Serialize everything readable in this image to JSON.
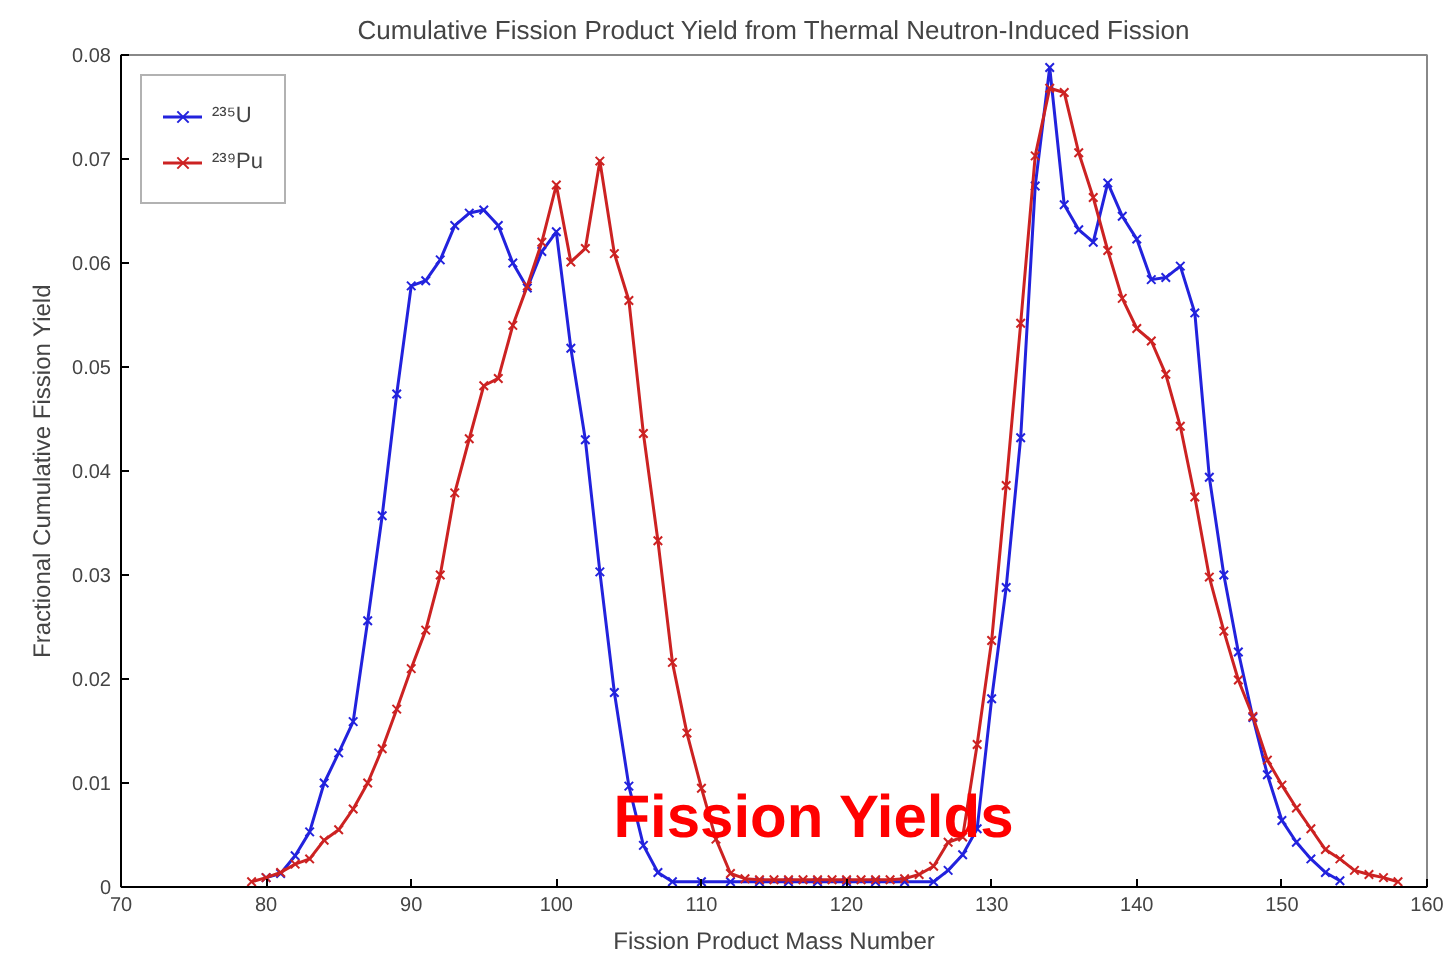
{
  "chart_data": {
    "type": "line",
    "title": "Cumulative Fission Product Yield from Thermal Neutron-Induced Fission",
    "xlabel": "Fission Product Mass Number",
    "ylabel": "Fractional Cumulative Fission Yield",
    "xlim": [
      70,
      160
    ],
    "ylim": [
      0,
      0.08
    ],
    "xticks": [
      70,
      80,
      90,
      100,
      110,
      120,
      130,
      140,
      150,
      160
    ],
    "yticks": [
      0,
      0.01,
      0.02,
      0.03,
      0.04,
      0.05,
      0.06,
      0.07,
      0.08
    ],
    "grid": false,
    "legend": "top left",
    "marker": "cross",
    "line_style": "solid",
    "annotations": [
      "Fission Yields"
    ],
    "series": [
      {
        "name": "²³⁵U",
        "color": "#2222dd",
        "x": [
          80,
          81,
          82,
          83,
          84,
          85,
          86,
          87,
          88,
          89,
          90,
          91,
          92,
          93,
          94,
          95,
          96,
          97,
          98,
          99,
          100,
          101,
          102,
          103,
          104,
          105,
          106,
          107,
          108,
          110,
          112,
          114,
          116,
          118,
          120,
          122,
          124,
          126,
          127,
          128,
          129,
          130,
          131,
          132,
          133,
          134,
          135,
          136,
          137,
          138,
          139,
          140,
          141,
          142,
          143,
          144,
          145,
          146,
          147,
          148,
          149,
          150,
          151,
          152,
          153,
          154
        ],
        "values": [
          0.0009,
          0.0013,
          0.003,
          0.0053,
          0.01,
          0.0129,
          0.0159,
          0.0256,
          0.0357,
          0.0474,
          0.0578,
          0.0583,
          0.0603,
          0.0636,
          0.0648,
          0.0651,
          0.0636,
          0.06,
          0.0576,
          0.0611,
          0.063,
          0.0518,
          0.043,
          0.0303,
          0.0187,
          0.0097,
          0.004,
          0.0014,
          0.0005,
          0.0005,
          0.0005,
          0.0005,
          0.0005,
          0.0005,
          0.0005,
          0.0005,
          0.0005,
          0.0005,
          0.0016,
          0.0031,
          0.0056,
          0.0181,
          0.0288,
          0.0432,
          0.0674,
          0.0788,
          0.0656,
          0.0632,
          0.062,
          0.0677,
          0.0645,
          0.0623,
          0.0584,
          0.0586,
          0.0597,
          0.0552,
          0.0394,
          0.03,
          0.0226,
          0.0163,
          0.0108,
          0.0064,
          0.0043,
          0.0027,
          0.0014,
          0.0006
        ]
      },
      {
        "name": "²³⁹Pu",
        "color": "#cc2222",
        "x": [
          79,
          80,
          81,
          82,
          83,
          84,
          85,
          86,
          87,
          88,
          89,
          90,
          91,
          92,
          93,
          94,
          95,
          96,
          97,
          98,
          99,
          100,
          101,
          102,
          103,
          104,
          105,
          106,
          107,
          108,
          109,
          110,
          111,
          112,
          113,
          114,
          115,
          116,
          117,
          118,
          119,
          120,
          121,
          122,
          123,
          124,
          125,
          126,
          127,
          128,
          129,
          130,
          131,
          132,
          133,
          134,
          135,
          136,
          137,
          138,
          139,
          140,
          141,
          142,
          143,
          144,
          145,
          146,
          147,
          148,
          149,
          150,
          151,
          152,
          153,
          154,
          155,
          156,
          157,
          158
        ],
        "values": [
          0.0005,
          0.0009,
          0.0014,
          0.0022,
          0.0027,
          0.0045,
          0.0055,
          0.0075,
          0.01,
          0.0133,
          0.0171,
          0.021,
          0.0247,
          0.03,
          0.0379,
          0.0431,
          0.0482,
          0.0489,
          0.054,
          0.0578,
          0.062,
          0.0675,
          0.0601,
          0.0614,
          0.0698,
          0.0609,
          0.0564,
          0.0436,
          0.0333,
          0.0216,
          0.0148,
          0.0095,
          0.0046,
          0.0013,
          0.0008,
          0.0007,
          0.0007,
          0.0007,
          0.0007,
          0.0007,
          0.0007,
          0.0007,
          0.0007,
          0.0007,
          0.0007,
          0.0008,
          0.0012,
          0.002,
          0.0043,
          0.0048,
          0.0137,
          0.0237,
          0.0386,
          0.0542,
          0.0703,
          0.0768,
          0.0764,
          0.0706,
          0.0663,
          0.0612,
          0.0566,
          0.0537,
          0.0525,
          0.0493,
          0.0443,
          0.0375,
          0.0298,
          0.0246,
          0.0199,
          0.0164,
          0.0122,
          0.0098,
          0.0076,
          0.0056,
          0.0036,
          0.0027,
          0.0016,
          0.0012,
          0.0009,
          0.0005
        ]
      }
    ]
  }
}
